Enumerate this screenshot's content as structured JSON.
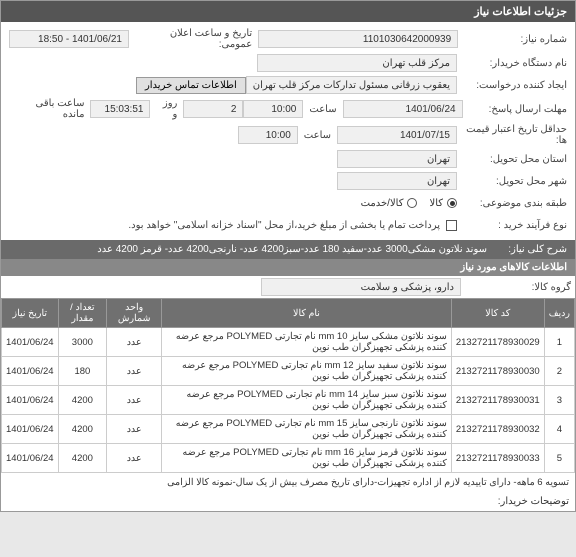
{
  "header": {
    "title": "جزئیات اطلاعات نیاز"
  },
  "fields": {
    "need_number": {
      "label": "شماره نیاز:",
      "value": "1101030642000939"
    },
    "announce": {
      "label": "تاریخ و ساعت اعلان عمومی:",
      "value": "1401/06/21 - 18:50"
    },
    "buyer_device": {
      "label": "نام دستگاه خریدار:",
      "value": "مرکز قلب تهران"
    },
    "request_creator": {
      "label": "ایجاد کننده درخواست:",
      "value": "یعقوب زرقانی مسئول تدارکات مرکز قلب تهران"
    },
    "contact_button": "اطلاعات تماس خریدار",
    "response_deadline": {
      "label": "مهلت ارسال پاسخ:",
      "date": "1401/06/24",
      "time_label": "ساعت",
      "time": "10:00",
      "days": "2",
      "days_label": "روز و",
      "remain": "15:03:51",
      "remain_label": "ساعت باقی مانده"
    },
    "min_validity": {
      "label": "حداقل تاریخ اعتبار قیمت ها:",
      "date": "1401/07/15",
      "time_label": "ساعت",
      "time": "10:00"
    },
    "need_city": {
      "label": "استان محل تحویل:",
      "value": "تهران"
    },
    "deliver_city": {
      "label": "شهر محل تحویل:",
      "value": "تهران"
    },
    "classification": {
      "label": "طبقه بندی موضوعی:",
      "opt_goods": "کالا",
      "opt_service": "کالا/خدمت"
    },
    "process_type": {
      "label": "نوع فرآیند خرید :",
      "text": "پرداخت تمام یا بخشی از مبلغ خرید،از محل \"اسناد خزانه اسلامی\" خواهد بود."
    }
  },
  "description": {
    "label": "شرح کلی نیاز:",
    "text": "سوند نلاتون مشکی3000 عدد-سفید 180 عدد-سبز4200 عدد- نارنجی4200 عدد- قرمز 4200 عدد"
  },
  "goods_header": "اطلاعات کالاهای مورد نیاز",
  "goods_group": {
    "label": "گروه کالا:",
    "value": "دارو، پزشکی و سلامت"
  },
  "table": {
    "columns": [
      "ردیف",
      "کد کالا",
      "نام کالا",
      "واحد شمارش",
      "تعداد / مقدار",
      "تاریخ نیاز"
    ],
    "rows": [
      [
        "1",
        "2132721178930029",
        "سوند نلاتون مشکی سایز mm 10 نام تجارتی POLYMED مرجع عرضه کننده پزشکی تجهیزگران طب نوین",
        "عدد",
        "3000",
        "1401/06/24"
      ],
      [
        "2",
        "2132721178930030",
        "سوند نلاتون سفید سایز mm 12 نام تجارتی POLYMED مرجع عرضه کننده پزشکی تجهیزگران طب نوین",
        "عدد",
        "180",
        "1401/06/24"
      ],
      [
        "3",
        "2132721178930031",
        "سوند نلاتون سبز سایز mm 14 نام تجارتی POLYMED مرجع عرضه کننده پزشکی تجهیزگران طب نوین",
        "عدد",
        "4200",
        "1401/06/24"
      ],
      [
        "4",
        "2132721178930032",
        "سوند نلاتون نارنجی سایز mm 15 نام تجارتی POLYMED مرجع عرضه کننده پزشکی تجهیزگران طب نوین",
        "عدد",
        "4200",
        "1401/06/24"
      ],
      [
        "5",
        "2132721178930033",
        "سوند نلاتون قرمز سایز mm 16 نام تجارتی POLYMED مرجع عرضه کننده پزشکی تجهیزگران طب نوین",
        "عدد",
        "4200",
        "1401/06/24"
      ]
    ]
  },
  "note": "تسویه 6 ماهه- دارای تاییدیه لازم از اداره تجهیزات-دارای تاریخ مصرف بیش از یک سال-نمونه کالا الزامی",
  "buyer_notes_label": "توضیحات خریدار:"
}
